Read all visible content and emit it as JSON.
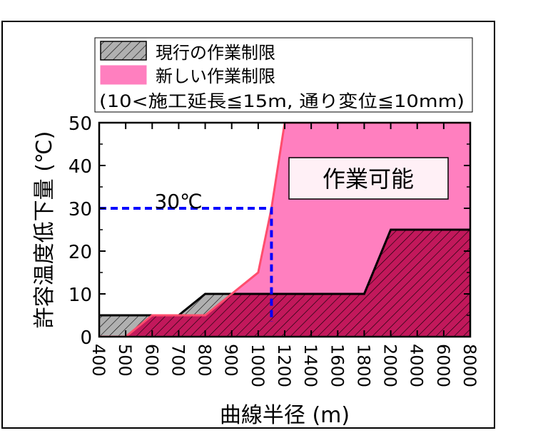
{
  "chart_data": {
    "type": "area",
    "xlabel": "曲線半径 (m)",
    "ylabel": "許容温度低下量 (℃)",
    "categories": [
      "400",
      "500",
      "600",
      "700",
      "800",
      "900",
      "1000",
      "1200",
      "1400",
      "1600",
      "1800",
      "2000",
      "4000",
      "6000",
      "8000"
    ],
    "ylim": [
      0,
      50
    ],
    "yticks": [
      0,
      10,
      20,
      30,
      40,
      50
    ],
    "legend": {
      "position": "top",
      "entries": [
        {
          "label": "現行の作業制限",
          "style": "hatched",
          "color": "#a0a0a0"
        },
        {
          "label": "新しい作業制限",
          "style": "filled",
          "color": "#ff7fbf"
        }
      ],
      "note": "(10<施工延長≦15m, 通り変位≦10mm)"
    },
    "series": [
      {
        "name": "現行の作業制限",
        "points": [
          [
            "400",
            5
          ],
          [
            "500",
            5
          ],
          [
            "600",
            5
          ],
          [
            "700",
            5
          ],
          [
            "800",
            10
          ],
          [
            "1000",
            10
          ],
          [
            "1800",
            10
          ],
          [
            "2000",
            25
          ],
          [
            "8000",
            25
          ]
        ]
      },
      {
        "name": "新しい作業制限",
        "points": [
          [
            "400",
            0
          ],
          [
            "500",
            0
          ],
          [
            "600",
            5
          ],
          [
            "700",
            5
          ],
          [
            "800",
            5
          ],
          [
            "1000",
            15
          ],
          [
            "1100",
            30
          ],
          [
            "1200",
            50
          ],
          [
            "8000",
            50
          ]
        ]
      }
    ],
    "annotations": [
      {
        "text": "作業可能",
        "position": "upper-right"
      },
      {
        "text": "30℃",
        "x": "1100",
        "y": 30,
        "style": "blue dashed guide"
      }
    ],
    "colors": {
      "current_edge": "#000000",
      "new_fill": "#ff7fbf",
      "new_edge": "#ff4d6d",
      "guide": "#0000ff",
      "overlap": "#c2185b"
    }
  }
}
